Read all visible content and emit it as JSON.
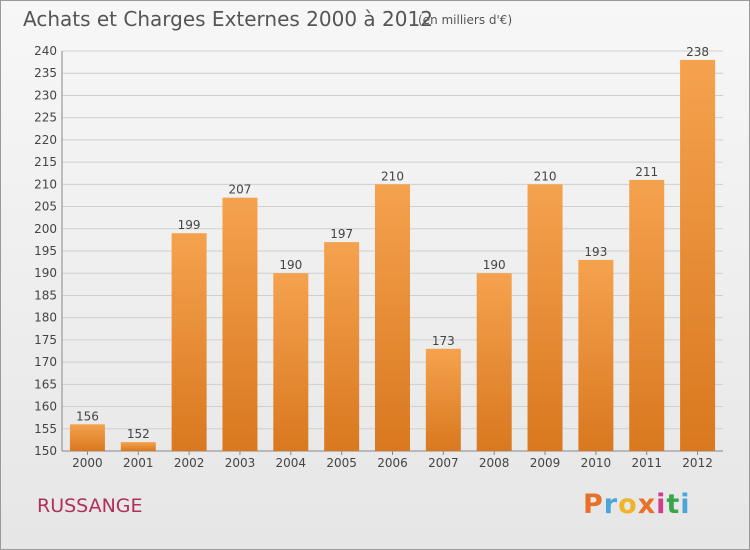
{
  "header": {
    "title": "Achats et Charges Externes 2000 à 2012",
    "subtitle": "(en milliers d'€)"
  },
  "footer": {
    "commune": "RUSSANGE",
    "brand_letters": [
      "P",
      "r",
      "o",
      "x",
      "i",
      "t",
      "i"
    ],
    "brand_colors": [
      "#e8712a",
      "#4aa5d8",
      "#f0b428",
      "#e8712a",
      "#d23c8c",
      "#3aa64a",
      "#4aa5d8"
    ]
  },
  "colors": {
    "bar_top": "#f5a24e",
    "bar_bottom": "#d9781f",
    "grid": "#cfcfcf",
    "text": "#444444",
    "commune": "#b0305a"
  },
  "chart_data": {
    "type": "bar",
    "title": "Achats et Charges Externes 2000 à 2012",
    "subtitle": "(en milliers d'€)",
    "categories": [
      "2000",
      "2001",
      "2002",
      "2003",
      "2004",
      "2005",
      "2006",
      "2007",
      "2008",
      "2009",
      "2010",
      "2011",
      "2012"
    ],
    "values": [
      156,
      152,
      199,
      207,
      190,
      197,
      210,
      173,
      190,
      210,
      193,
      211,
      238
    ],
    "ylim": [
      150,
      240
    ],
    "yticks": [
      150,
      155,
      160,
      165,
      170,
      175,
      180,
      185,
      190,
      195,
      200,
      205,
      210,
      215,
      220,
      225,
      230,
      235,
      240
    ],
    "grid": true,
    "xlabel": "",
    "ylabel": ""
  }
}
